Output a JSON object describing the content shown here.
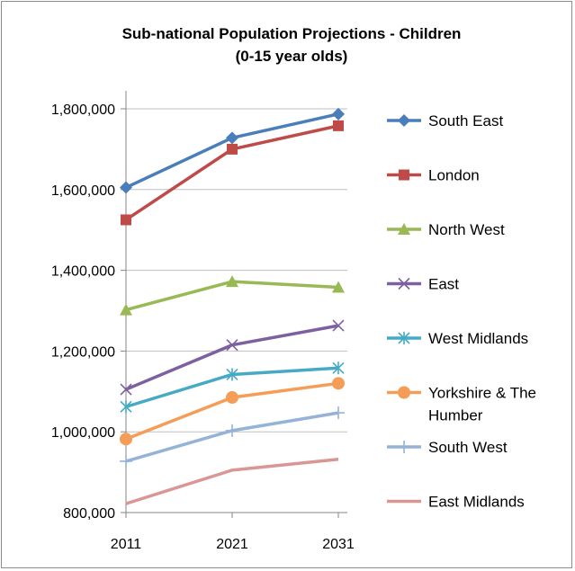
{
  "chart_data": {
    "type": "line",
    "title": "Sub-national Population Projections - Children",
    "subtitle": "(0-15 year olds)",
    "xlabel": "",
    "ylabel": "",
    "categories": [
      "2011",
      "2021",
      "2031"
    ],
    "ylim": [
      800000,
      1800000
    ],
    "yticks": [
      "800,000",
      "1,000,000",
      "1,200,000",
      "1,400,000",
      "1,600,000",
      "1,800,000"
    ],
    "ytick_values": [
      800000,
      1000000,
      1200000,
      1400000,
      1600000,
      1800000
    ],
    "grid": true,
    "legend_position": "right",
    "series": [
      {
        "name": "South East",
        "values": [
          1605000,
          1728000,
          1787000
        ],
        "color": "#4a7ebb",
        "marker": "diamond"
      },
      {
        "name": "London",
        "values": [
          1525000,
          1700000,
          1758000
        ],
        "color": "#be4b48",
        "marker": "square"
      },
      {
        "name": "North West",
        "values": [
          1302000,
          1372000,
          1358000
        ],
        "color": "#98b954",
        "marker": "triangle"
      },
      {
        "name": "East",
        "values": [
          1105000,
          1215000,
          1263000
        ],
        "color": "#7d60a0",
        "marker": "x"
      },
      {
        "name": "West Midlands",
        "values": [
          1062000,
          1142000,
          1158000
        ],
        "color": "#46aac5",
        "marker": "star"
      },
      {
        "name": "Yorkshire & The Humber",
        "legend_lines": [
          "Yorkshire & The",
          "Humber"
        ],
        "values": [
          982000,
          1085000,
          1120000
        ],
        "color": "#f59d56",
        "marker": "circle"
      },
      {
        "name": "South West",
        "values": [
          927000,
          1003000,
          1047000
        ],
        "color": "#95b3d7",
        "marker": "plus"
      },
      {
        "name": "East Midlands",
        "values": [
          822000,
          905000,
          932000
        ],
        "color": "#d99694",
        "marker": "none"
      }
    ]
  }
}
